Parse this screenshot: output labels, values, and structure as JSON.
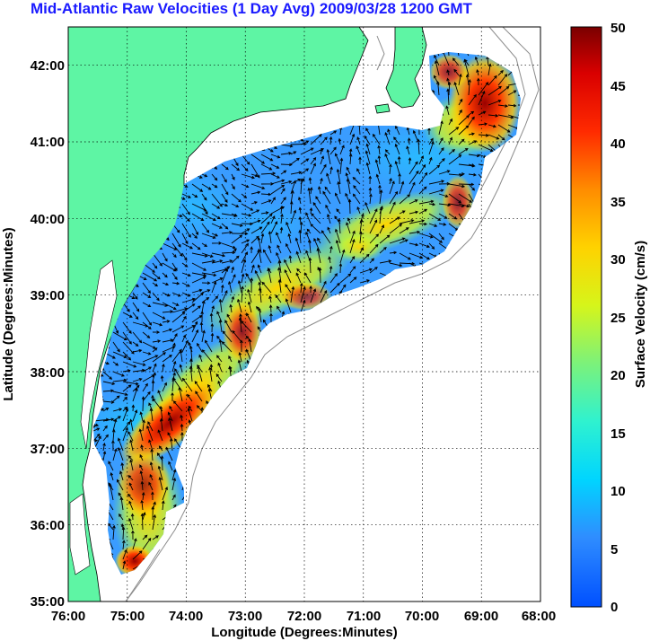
{
  "title": "Mid-Atlantic Raw Velocities (1 Day Avg) 2009/03/28 1200 GMT",
  "map": {
    "xlabel": "Longitude (Degrees:Minutes)",
    "ylabel": "Latitude (Degrees:Minutes)",
    "lon_range": [
      -76,
      -68
    ],
    "lat_range": [
      35,
      42.5
    ],
    "lon_ticks": [
      "76:00",
      "75:00",
      "74:00",
      "73:00",
      "72:00",
      "71:00",
      "70:00",
      "69:00",
      "68:00"
    ],
    "lat_ticks": [
      "35:00",
      "36:00",
      "37:00",
      "38:00",
      "39:00",
      "40:00",
      "41:00",
      "42:00"
    ],
    "grid": "dotted",
    "land_color": "#5ef5a4"
  },
  "colorbar": {
    "label": "Surface Velocity (cm/s)",
    "min": 0,
    "max": 50,
    "ticks": [
      "0",
      "5",
      "10",
      "15",
      "20",
      "25",
      "30",
      "35",
      "40",
      "45",
      "50"
    ]
  }
}
